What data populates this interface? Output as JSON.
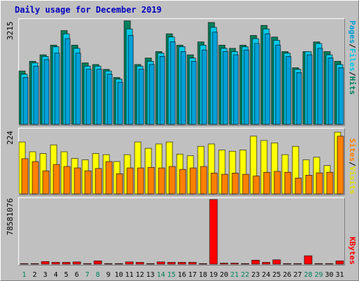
{
  "title": "Daily usage for December 2019",
  "colors": {
    "pages": "#00a0d8",
    "files": "#00c8e8",
    "hits": "#00805c",
    "visits": "#ffff00",
    "sites": "#ff8000",
    "kbytes": "#ff0000",
    "weekend_label": "#00805c",
    "weekday_label": "#000000"
  },
  "panels": {
    "hits_panel": {
      "ymax_label": "3215",
      "legend": [
        "Pages",
        "Files",
        "Hits"
      ]
    },
    "visits_panel": {
      "ymax_label": "224",
      "legend": [
        "Sites",
        "Visits"
      ]
    },
    "kbytes_panel": {
      "ymax_label": "78581076",
      "legend": [
        "KBytes"
      ]
    }
  },
  "chart_data": [
    {
      "type": "bar",
      "title": "Daily usage for December 2019",
      "categories": [
        "1",
        "2",
        "3",
        "4",
        "5",
        "6",
        "7",
        "8",
        "9",
        "10",
        "11",
        "12",
        "13",
        "14",
        "15",
        "16",
        "17",
        "18",
        "19",
        "20",
        "21",
        "22",
        "23",
        "24",
        "25",
        "26",
        "27",
        "28",
        "29",
        "30",
        "31"
      ],
      "weekend_days": [
        "1",
        "7",
        "8",
        "14",
        "15",
        "21",
        "22",
        "28",
        "29"
      ],
      "ylim": [
        0,
        3215
      ],
      "series": [
        {
          "name": "Hits",
          "values": [
            1650,
            1950,
            2150,
            2450,
            2900,
            2450,
            1900,
            1850,
            1700,
            1450,
            3200,
            1850,
            2050,
            2250,
            2800,
            2450,
            2150,
            2550,
            3150,
            2450,
            2350,
            2450,
            2750,
            3060,
            2700,
            2250,
            1750,
            2250,
            2550,
            2250,
            1950
          ]
        },
        {
          "name": "Files",
          "values": [
            1550,
            1900,
            2100,
            2400,
            2800,
            2350,
            1800,
            1800,
            1650,
            1400,
            2950,
            1800,
            1950,
            2200,
            2700,
            2400,
            2050,
            2450,
            3000,
            2350,
            2250,
            2400,
            2650,
            2950,
            2600,
            2200,
            1700,
            2250,
            2500,
            2150,
            1850
          ]
        },
        {
          "name": "Pages",
          "values": [
            1450,
            1800,
            2000,
            2200,
            2650,
            2200,
            1700,
            1700,
            1550,
            1300,
            2750,
            1700,
            1850,
            2100,
            2550,
            2250,
            1950,
            2300,
            2850,
            2250,
            2150,
            2300,
            2500,
            2800,
            2450,
            2100,
            1600,
            2150,
            2350,
            2050,
            1750
          ]
        }
      ]
    },
    {
      "type": "bar",
      "categories": [
        "1",
        "2",
        "3",
        "4",
        "5",
        "6",
        "7",
        "8",
        "9",
        "10",
        "11",
        "12",
        "13",
        "14",
        "15",
        "16",
        "17",
        "18",
        "19",
        "20",
        "21",
        "22",
        "23",
        "24",
        "25",
        "26",
        "27",
        "28",
        "29",
        "30",
        "31"
      ],
      "ylim": [
        0,
        224
      ],
      "series": [
        {
          "name": "Visits",
          "values": [
            180,
            146,
            140,
            170,
            146,
            123,
            118,
            140,
            136,
            112,
            136,
            180,
            158,
            173,
            180,
            138,
            132,
            165,
            173,
            152,
            148,
            152,
            200,
            185,
            177,
            136,
            165,
            118,
            127,
            98,
            214
          ]
        },
        {
          "name": "Sites",
          "values": [
            122,
            112,
            80,
            102,
            95,
            90,
            80,
            88,
            112,
            70,
            90,
            90,
            92,
            90,
            95,
            85,
            90,
            95,
            72,
            68,
            72,
            68,
            62,
            75,
            78,
            75,
            55,
            65,
            73,
            75,
            200
          ]
        }
      ]
    },
    {
      "type": "bar",
      "categories": [
        "1",
        "2",
        "3",
        "4",
        "5",
        "6",
        "7",
        "8",
        "9",
        "10",
        "11",
        "12",
        "13",
        "14",
        "15",
        "16",
        "17",
        "18",
        "19",
        "20",
        "21",
        "22",
        "23",
        "24",
        "25",
        "26",
        "27",
        "28",
        "29",
        "30",
        "31"
      ],
      "ylim": [
        0,
        78581076
      ],
      "series": [
        {
          "name": "KBytes",
          "values": [
            700000,
            700000,
            3200000,
            2200000,
            2200000,
            2700000,
            700000,
            4000000,
            700000,
            700000,
            2700000,
            2200000,
            700000,
            2700000,
            2200000,
            2200000,
            2200000,
            700000,
            78581076,
            1200000,
            1200000,
            700000,
            4800000,
            2200000,
            5300000,
            700000,
            700000,
            10200000,
            700000,
            700000,
            4000000
          ]
        }
      ]
    }
  ]
}
